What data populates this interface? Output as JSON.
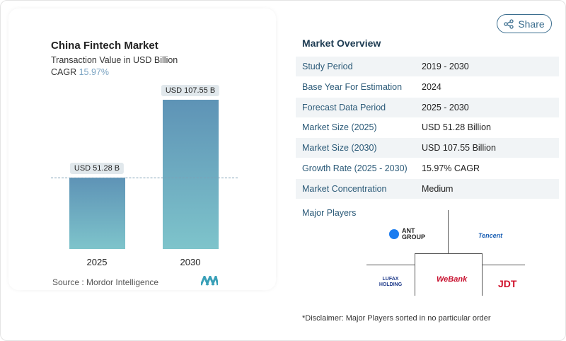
{
  "chart_card": {
    "title": "China Fintech Market",
    "subtitle": "Transaction Value in USD Billion",
    "cagr_label": "CAGR",
    "cagr_value": "15.97%",
    "source": "Source :  Mordor Intelligence"
  },
  "chart_data": {
    "type": "bar",
    "categories": [
      "2025",
      "2030"
    ],
    "values": [
      51.28,
      107.55
    ],
    "data_labels": [
      "USD 51.28 B",
      "USD 107.55 B"
    ],
    "title": "China Fintech Market",
    "ylabel": "Transaction Value in USD Billion",
    "color": "#6aa8c0"
  },
  "share": {
    "label": "Share",
    "icon": "share-icon"
  },
  "overview": {
    "title": "Market Overview",
    "rows": [
      {
        "label": "Study Period",
        "value": "2019 - 2030"
      },
      {
        "label": "Base Year For Estimation",
        "value": "2024"
      },
      {
        "label": "Forecast Data Period",
        "value": "2025 - 2030"
      },
      {
        "label": "Market Size (2025)",
        "value": "USD 51.28 Billion"
      },
      {
        "label": "Market Size (2030)",
        "value": "USD 107.55 Billion"
      },
      {
        "label": "Growth Rate (2025 - 2030)",
        "value": "15.97% CAGR"
      },
      {
        "label": "Market Concentration",
        "value": "Medium"
      }
    ]
  },
  "players": {
    "title": "Major Players",
    "logos": [
      "ANT GROUP",
      "Tencent",
      "LUFAX HOLDING",
      "WeBank",
      "JDT"
    ]
  },
  "disclaimer": "*Disclaimer: Major Players sorted in no particular order"
}
